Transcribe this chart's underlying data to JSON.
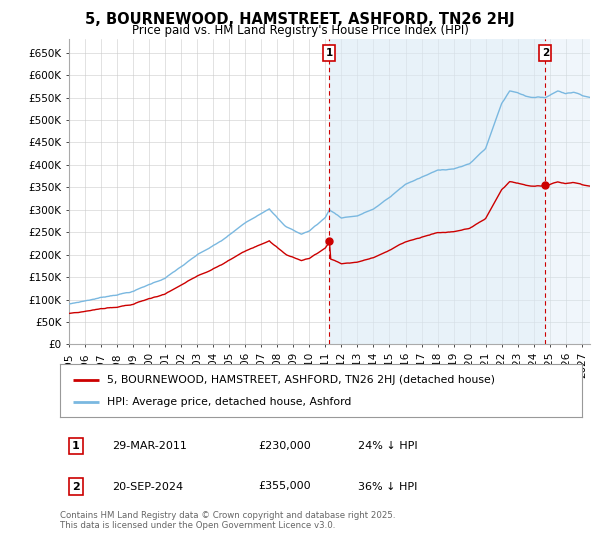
{
  "title": "5, BOURNEWOOD, HAMSTREET, ASHFORD, TN26 2HJ",
  "subtitle": "Price paid vs. HM Land Registry's House Price Index (HPI)",
  "ylim": [
    0,
    680000
  ],
  "yticks": [
    0,
    50000,
    100000,
    150000,
    200000,
    250000,
    300000,
    350000,
    400000,
    450000,
    500000,
    550000,
    600000,
    650000
  ],
  "ytick_labels": [
    "£0",
    "£50K",
    "£100K",
    "£150K",
    "£200K",
    "£250K",
    "£300K",
    "£350K",
    "£400K",
    "£450K",
    "£500K",
    "£550K",
    "£600K",
    "£650K"
  ],
  "xlim_start": 1995.0,
  "xlim_end": 2027.5,
  "xtick_years": [
    1995,
    1996,
    1997,
    1998,
    1999,
    2000,
    2001,
    2002,
    2003,
    2004,
    2005,
    2006,
    2007,
    2008,
    2009,
    2010,
    2011,
    2012,
    2013,
    2014,
    2015,
    2016,
    2017,
    2018,
    2019,
    2020,
    2021,
    2022,
    2023,
    2024,
    2025,
    2026,
    2027
  ],
  "hpi_color": "#7ab8e0",
  "hpi_fill_color": "#daeaf6",
  "price_color": "#cc0000",
  "vline_color": "#cc0000",
  "background_color": "#ffffff",
  "grid_color": "#cccccc",
  "legend_label_price": "5, BOURNEWOOD, HAMSTREET, ASHFORD, TN26 2HJ (detached house)",
  "legend_label_hpi": "HPI: Average price, detached house, Ashford",
  "sale1_x": 2011.24,
  "sale1_y": 230000,
  "sale2_x": 2024.72,
  "sale2_y": 355000,
  "sale1_date": "29-MAR-2011",
  "sale1_price": "£230,000",
  "sale1_note": "24% ↓ HPI",
  "sale2_date": "20-SEP-2024",
  "sale2_price": "£355,000",
  "sale2_note": "36% ↓ HPI",
  "footnote": "Contains HM Land Registry data © Crown copyright and database right 2025.\nThis data is licensed under the Open Government Licence v3.0."
}
